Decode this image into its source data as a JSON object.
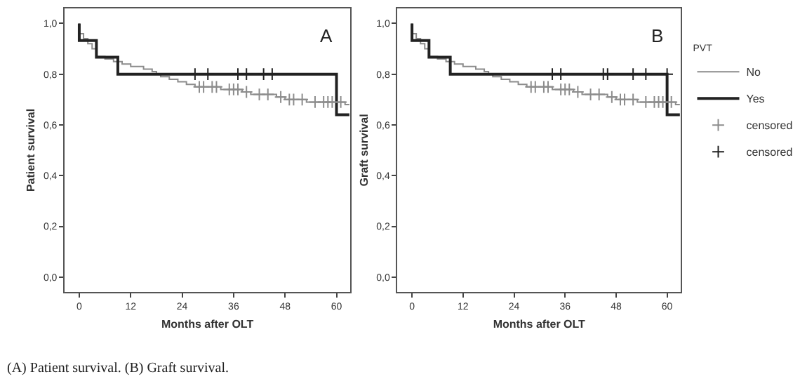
{
  "chart_data": [
    {
      "type": "step",
      "title": "A",
      "xlabel": "Months after OLT",
      "ylabel": "Patient survival",
      "xlim": [
        -3.4,
        63.2
      ],
      "xticks": [
        0,
        12,
        24,
        36,
        48,
        60
      ],
      "ylim": [
        -0.058,
        1.059
      ],
      "yticks": [
        {
          "value": 0,
          "label": "0,0"
        },
        {
          "value": 0.2,
          "label": "0,2"
        },
        {
          "value": 0.4,
          "label": "0,4"
        },
        {
          "value": 0.6,
          "label": "0,6"
        },
        {
          "value": 0.8,
          "label": "0,8"
        },
        {
          "value": 1.0,
          "label": "1,0"
        }
      ],
      "legend": false,
      "annotations": [
        "(A) Patient survival. (B) Graft survival."
      ],
      "series": [
        {
          "color": "#8c8c8c",
          "x": [
            0,
            0,
            1,
            2,
            3,
            4,
            6,
            8,
            10,
            12,
            15,
            17,
            18,
            19,
            21,
            23,
            25,
            27,
            33,
            38,
            40,
            46,
            48,
            53,
            62,
            63
          ],
          "values": [
            1.0,
            0.96,
            0.94,
            0.92,
            0.9,
            0.87,
            0.86,
            0.85,
            0.84,
            0.83,
            0.82,
            0.81,
            0.8,
            0.79,
            0.78,
            0.77,
            0.76,
            0.75,
            0.74,
            0.73,
            0.72,
            0.71,
            0.7,
            0.69,
            0.68,
            0.68
          ]
        },
        {
          "color": "#222222",
          "x": [
            0,
            0,
            4,
            9,
            60,
            63
          ],
          "values": [
            1.0,
            0.933,
            0.867,
            0.8,
            0.64,
            0.64
          ]
        },
        {
          "type": "scatter",
          "marker": "cross",
          "color": "#8c8c8c",
          "x": [
            28,
            29,
            31,
            32,
            35,
            36,
            37,
            39,
            42,
            44,
            47,
            49,
            50,
            52,
            55,
            57,
            58,
            59,
            61
          ],
          "values": [
            0.75,
            0.75,
            0.75,
            0.75,
            0.74,
            0.74,
            0.74,
            0.73,
            0.72,
            0.72,
            0.71,
            0.7,
            0.7,
            0.7,
            0.69,
            0.69,
            0.69,
            0.69,
            0.69
          ]
        },
        {
          "type": "scatter",
          "marker": "cross",
          "color": "#222222",
          "x": [
            27,
            30,
            37,
            39,
            43,
            45
          ],
          "values": [
            0.8,
            0.8,
            0.8,
            0.8,
            0.8,
            0.8
          ]
        }
      ]
    },
    {
      "type": "step",
      "title": "B",
      "xlabel": "Months after OLT",
      "ylabel": "Graft survival",
      "xlim": [
        -3.4,
        63.2
      ],
      "xticks": [
        0,
        12,
        24,
        36,
        48,
        60
      ],
      "ylim": [
        -0.058,
        1.059
      ],
      "yticks": [
        {
          "value": 0,
          "label": "0,0"
        },
        {
          "value": 0.2,
          "label": "0,2"
        },
        {
          "value": 0.4,
          "label": "0,4"
        },
        {
          "value": 0.6,
          "label": "0,6"
        },
        {
          "value": 0.8,
          "label": "0,8"
        },
        {
          "value": 1.0,
          "label": "1,0"
        }
      ],
      "legend": "top right",
      "legend_title": "PVT",
      "series": [
        {
          "name": "No",
          "color": "#8c8c8c",
          "x": [
            0,
            0,
            1,
            2,
            3,
            4,
            6,
            8,
            10,
            12,
            15,
            17,
            18,
            19,
            21,
            23,
            25,
            27,
            33,
            38,
            40,
            46,
            48,
            53,
            62,
            63
          ],
          "values": [
            1.0,
            0.96,
            0.94,
            0.92,
            0.9,
            0.87,
            0.86,
            0.85,
            0.84,
            0.83,
            0.82,
            0.81,
            0.8,
            0.79,
            0.78,
            0.77,
            0.76,
            0.75,
            0.74,
            0.73,
            0.72,
            0.71,
            0.7,
            0.69,
            0.68,
            0.68
          ]
        },
        {
          "name": "Yes",
          "color": "#222222",
          "x": [
            0,
            0,
            4,
            9,
            60,
            63
          ],
          "values": [
            1.0,
            0.933,
            0.867,
            0.8,
            0.64,
            0.64
          ]
        },
        {
          "name": "censored",
          "type": "scatter",
          "marker": "cross",
          "color": "#8c8c8c",
          "x": [
            28,
            29,
            31,
            32,
            35,
            36,
            37,
            39,
            42,
            44,
            47,
            49,
            50,
            52,
            55,
            57,
            58,
            59,
            61
          ],
          "values": [
            0.75,
            0.75,
            0.75,
            0.75,
            0.74,
            0.74,
            0.74,
            0.73,
            0.72,
            0.72,
            0.71,
            0.7,
            0.7,
            0.7,
            0.69,
            0.69,
            0.69,
            0.69,
            0.69
          ]
        },
        {
          "name": "censored",
          "type": "scatter",
          "marker": "cross",
          "color": "#222222",
          "x": [
            33,
            35,
            45,
            46,
            52,
            55,
            60
          ],
          "values": [
            0.8,
            0.8,
            0.8,
            0.8,
            0.8,
            0.8,
            0.8
          ]
        }
      ]
    }
  ]
}
